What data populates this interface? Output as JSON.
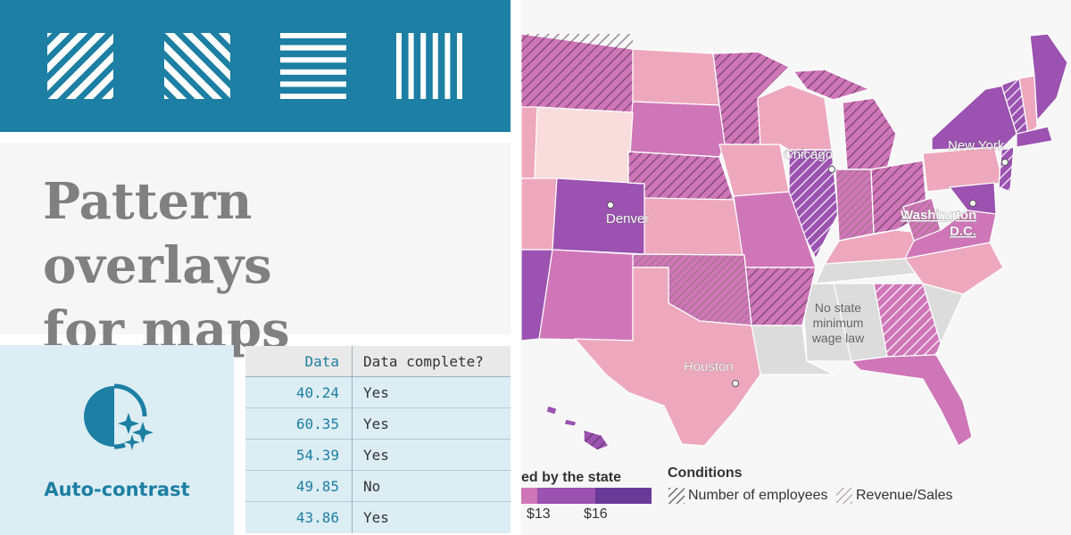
{
  "banner": {
    "patterns": [
      {
        "name": "diagonal-forward-pattern-icon"
      },
      {
        "name": "diagonal-backward-pattern-icon"
      },
      {
        "name": "horizontal-lines-pattern-icon"
      },
      {
        "name": "vertical-lines-pattern-icon"
      }
    ],
    "color": "#1c7fa3"
  },
  "title": {
    "line1": "Pattern overlays",
    "line2": "for maps"
  },
  "auto_contrast": {
    "label": "Auto-contrast",
    "icon": "auto-contrast-icon",
    "color": "#1c7fa3"
  },
  "table": {
    "headers": [
      "Data",
      "Data complete?"
    ],
    "rows": [
      [
        "40.24",
        "Yes"
      ],
      [
        "60.35",
        "Yes"
      ],
      [
        "54.39",
        "Yes"
      ],
      [
        "49.85",
        "No"
      ],
      [
        "43.86",
        "Yes"
      ]
    ]
  },
  "map": {
    "cities": {
      "chicago": "Chicago",
      "new_york": "New York",
      "denver": "Denver",
      "washington_1": "Washington",
      "washington_2": "D.C.",
      "houston": "Houston"
    },
    "no_law_1": "No state",
    "no_law_2": "minimum",
    "no_law_3": "wage law",
    "colors": {
      "light": "#f9dcdc",
      "pink": "#eea8bd",
      "mid": "#cf76b8",
      "purple": "#9b52b0",
      "dark": "#6a3a99",
      "none": "#dcdcdc"
    }
  },
  "legend": {
    "wage_title": "ed by the state",
    "wage_ticks": [
      "$13",
      "$16"
    ],
    "conditions_title": "Conditions",
    "conditions": [
      "Number of employees",
      "Revenue/Sales"
    ]
  }
}
